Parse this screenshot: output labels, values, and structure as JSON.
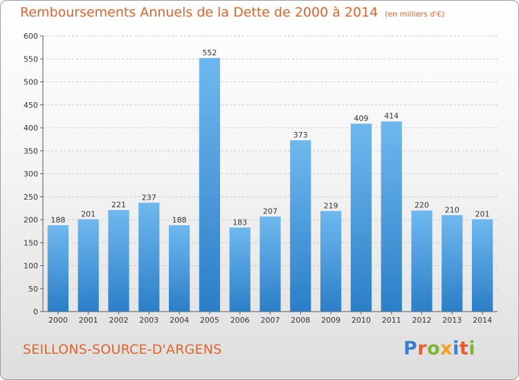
{
  "title": "Remboursements Annuels de la Dette de 2000 à 2014",
  "unit": "(en milliers d'€)",
  "commune": "SEILLONS-SOURCE-D'ARGENS",
  "logo": {
    "text": "Proxiti",
    "letter_colors": [
      "#3a7fd0",
      "#e95b2a",
      "#7cb82f",
      "#f0a31b",
      "#3a7fd0",
      "#e95b2a",
      "#7cb82f"
    ]
  },
  "colors": {
    "bar_top": "#6fb8ef",
    "bar_bottom": "#2b7fc7",
    "title": "#e0642a",
    "grid": "#c8c8c8"
  },
  "chart_data": {
    "type": "bar",
    "categories": [
      "2000",
      "2001",
      "2002",
      "2003",
      "2004",
      "2005",
      "2006",
      "2007",
      "2008",
      "2009",
      "2010",
      "2011",
      "2012",
      "2013",
      "2014"
    ],
    "values": [
      188,
      201,
      221,
      237,
      188,
      552,
      183,
      207,
      373,
      219,
      409,
      414,
      220,
      210,
      201
    ],
    "ylim": [
      0,
      600
    ],
    "yticks": [
      0,
      50,
      100,
      150,
      200,
      250,
      300,
      350,
      400,
      450,
      500,
      550,
      600
    ],
    "grid": true,
    "data_labels": true
  }
}
